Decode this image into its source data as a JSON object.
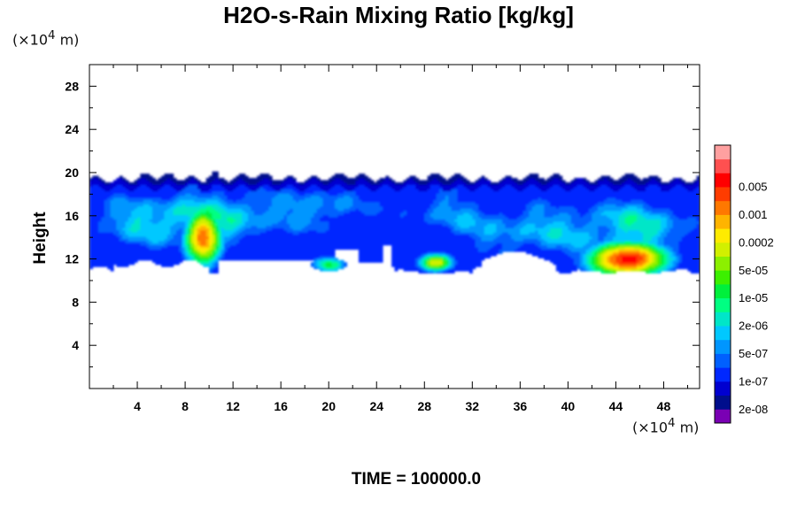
{
  "chart_data": {
    "type": "heatmap",
    "title": "H2O-s-Rain Mixing Ratio [kg/kg]",
    "ylabel": "Height",
    "y_unit": {
      "prefix": "(×10",
      "exp": "4",
      "suffix": " m)"
    },
    "x_unit": {
      "prefix": "(×10",
      "exp": "4",
      "suffix": " m)"
    },
    "time_label": "TIME = 100000.0",
    "xlim": [
      0,
      51
    ],
    "ylim": [
      0,
      30
    ],
    "x_ticks": [
      "4",
      "8",
      "12",
      "16",
      "20",
      "24",
      "28",
      "32",
      "36",
      "40",
      "44",
      "48"
    ],
    "y_ticks": [
      "4",
      "8",
      "12",
      "16",
      "20",
      "24",
      "28"
    ],
    "colorbar": {
      "levels": [
        "5e-09",
        "2e-08",
        "5e-08",
        "1e-07",
        "2e-07",
        "5e-07",
        "1e-06",
        "2e-06",
        "5e-06",
        "1e-05",
        "2e-05",
        "5e-05",
        "0.0001",
        "0.0002",
        "0.0005",
        "0.001",
        "0.002",
        "0.005",
        "0.01"
      ],
      "labels": [
        "2e-08",
        "1e-07",
        "5e-07",
        "2e-06",
        "1e-05",
        "5e-05",
        "0.0002",
        "0.001",
        "0.005"
      ],
      "colors": [
        "#7a00b4",
        "#000e8c",
        "#0000d0",
        "#0028ff",
        "#0060ff",
        "#0096ff",
        "#00c8ff",
        "#00e6c8",
        "#00ff82",
        "#00f03c",
        "#3cf000",
        "#8cf000",
        "#d2f000",
        "#ffeb00",
        "#ffb400",
        "#ff7800",
        "#ff3c00",
        "#ff0000",
        "#ff5050",
        "#ffa0a0"
      ]
    },
    "rain_band": {
      "base_km": 11,
      "top_km": 19.5,
      "features": [
        {
          "name": "cell-west",
          "x": 9.5,
          "y": 14,
          "peak_level": 16
        },
        {
          "name": "cell-east",
          "x": 45,
          "y": 12,
          "peak_level": 18
        },
        {
          "name": "patch-20",
          "x": 20,
          "y": 11.5,
          "peak_level": 9
        },
        {
          "name": "patch-29",
          "x": 29,
          "y": 11.7,
          "peak_level": 13
        }
      ]
    }
  }
}
